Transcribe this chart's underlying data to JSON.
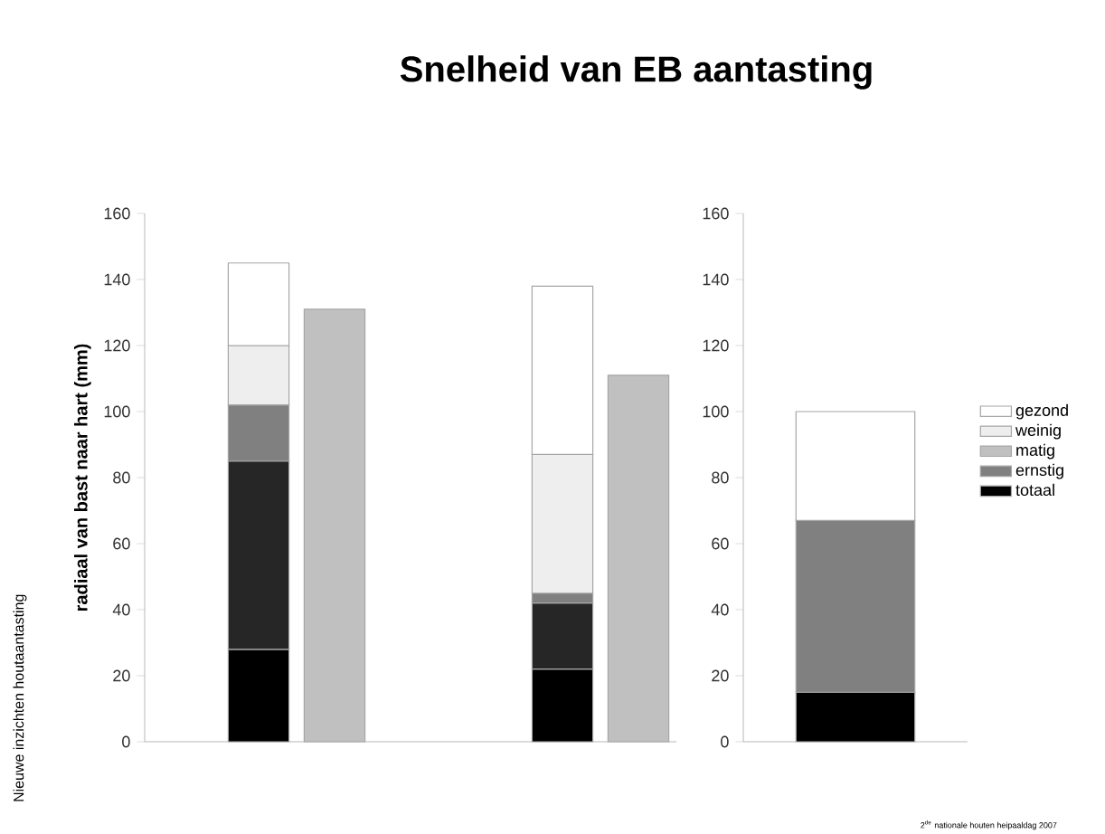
{
  "chart_data": [
    {
      "type": "bar",
      "stacked": true,
      "title": "Snelheid van EB aantasting",
      "ylabel": "radiaal van bast naar hart (mm)",
      "annotations": [
        "Nieuwe inzichten houtaantasting",
        "2$^{de}$ nationale houten heipaaldag 2007"
      ],
      "categories": [
        null,
        null,
        null,
        null,
        null,
        null,
        null
      ],
      "series": [
        {
          "name": "totaal",
          "color": "#000000",
          "values": [
            null,
            28,
            null,
            null,
            null,
            22,
            null
          ]
        },
        {
          "color": "#262626",
          "values": [
            null,
            57,
            null,
            null,
            null,
            20,
            null
          ]
        },
        {
          "name": "ernstig",
          "color": "#808080",
          "values": [
            null,
            17,
            null,
            null,
            null,
            3,
            null
          ]
        },
        {
          "name": "matig",
          "color": "#c0c0c0",
          "values": [
            null,
            null,
            131,
            null,
            null,
            null,
            111
          ]
        },
        {
          "name": "weinig",
          "color": "#eeeeee",
          "values": [
            null,
            18,
            null,
            null,
            null,
            42,
            null
          ]
        },
        {
          "name": "gezond",
          "color": "#ffffff",
          "values": [
            null,
            25,
            null,
            null,
            null,
            51,
            null
          ]
        }
      ],
      "ylim": [
        0,
        160
      ],
      "yticks": [
        0,
        20,
        40,
        60,
        80,
        100,
        120,
        140,
        160
      ],
      "tick_labels": "y",
      "legend": "right"
    },
    {
      "type": "bar",
      "stacked": true,
      "categories": [
        null
      ],
      "series": [
        {
          "color": "#000000",
          "values": [
            15
          ]
        },
        {
          "color": "#808080",
          "values": [
            52
          ]
        },
        {
          "color": "#ffffff",
          "values": [
            33
          ]
        }
      ],
      "ylim": [
        0,
        160
      ],
      "yticks": [
        0,
        20,
        40,
        60,
        80,
        100,
        120,
        140,
        160
      ],
      "tick_labels": "y"
    }
  ]
}
